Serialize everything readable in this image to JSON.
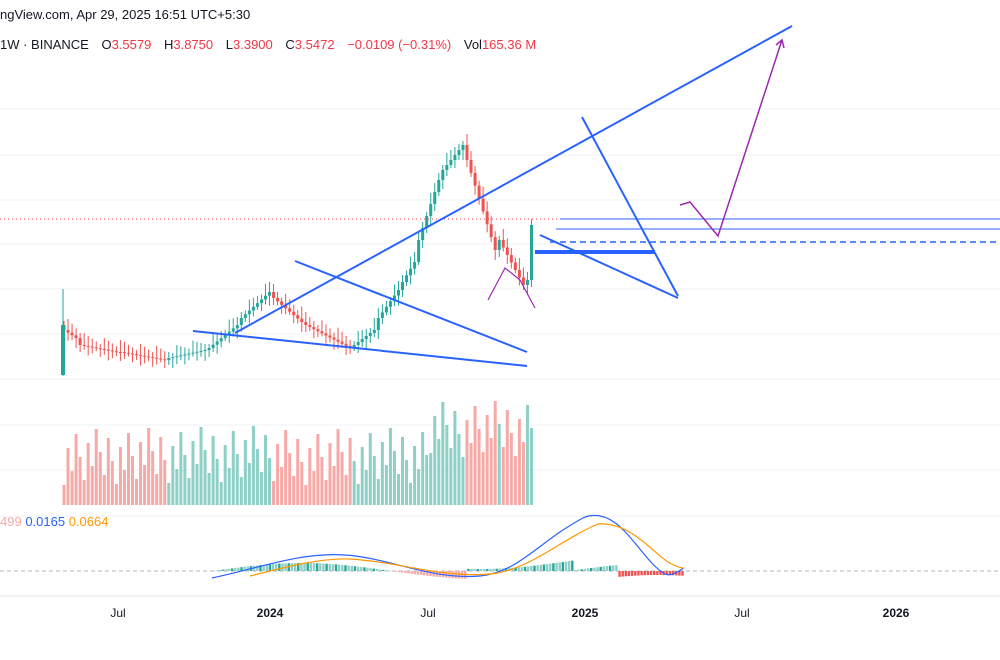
{
  "header": {
    "source": "ngView.com, Apr 29, 2025 16:51 UTC+5:30",
    "symbol": "1W · BINANCE",
    "open_label": "O",
    "open": "3.5579",
    "high_label": "H",
    "high": "3.8750",
    "low_label": "L",
    "low": "3.3900",
    "close_label": "C",
    "close": "3.5472",
    "change": "−0.0109 (−0.31%)",
    "vol_label": "Vol",
    "vol": "165.36 M"
  },
  "macd_values": {
    "hist": "499",
    "macd": "0.0165",
    "signal": "0.0664"
  },
  "colors": {
    "up": "#26a69a",
    "down": "#ef5350",
    "up_vol": "#8ed0c6",
    "down_vol": "#f6a9a6",
    "trendline": "#2962ff",
    "projection": "#9c27b0",
    "macd": "#2962ff",
    "signal": "#ff9800"
  },
  "chart_data": {
    "type": "candlestick",
    "timeframe": "1W",
    "x_ticks": [
      "Jul",
      "2024",
      "Jul",
      "2025",
      "Jul",
      "2026"
    ],
    "last_candle": {
      "open": 3.5579,
      "high": 3.875,
      "low": 3.39,
      "close": 3.5472,
      "volume": "165.36 M"
    },
    "macd": {
      "histogram": "499",
      "macd": 0.0165,
      "signal": 0.0664
    }
  }
}
